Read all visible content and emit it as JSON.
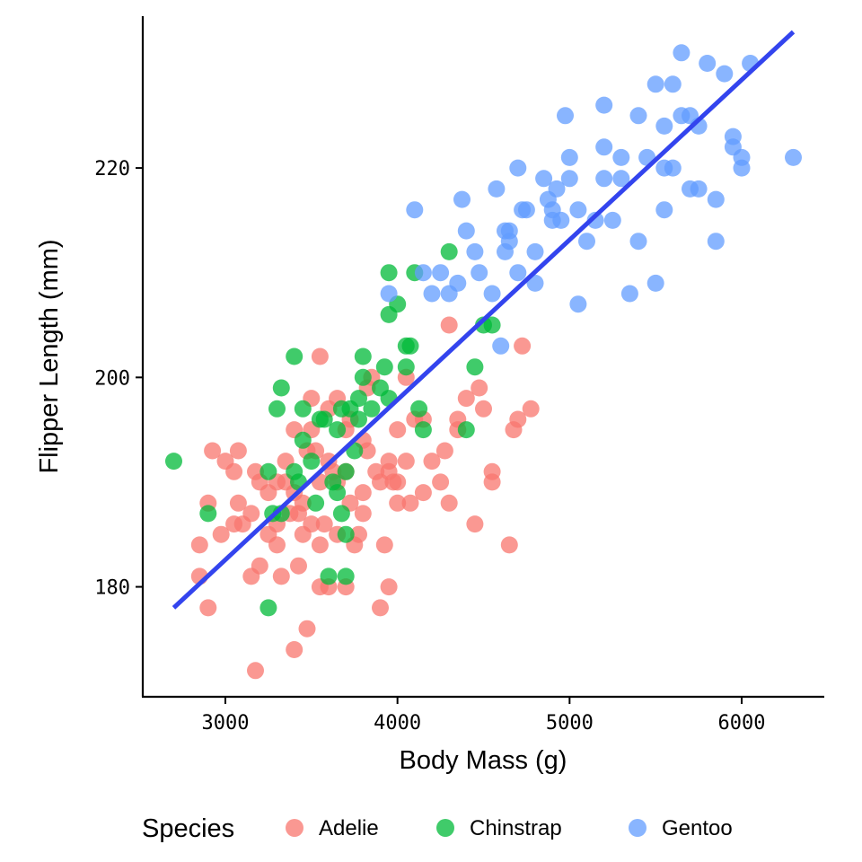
{
  "chart_data": {
    "type": "scatter",
    "title": "",
    "xlabel": "Body Mass (g)",
    "ylabel": "Flipper Length (mm)",
    "xlim": [
      2520,
      6480
    ],
    "ylim": [
      169.5,
      234.5
    ],
    "x_ticks": [
      3000,
      4000,
      5000,
      6000
    ],
    "x_tick_labels": [
      "3000",
      "4000",
      "5000",
      "6000"
    ],
    "y_ticks": [
      180,
      200,
      220
    ],
    "y_tick_labels": [
      "180",
      "200",
      "220"
    ],
    "grid": false,
    "legend": {
      "title": "Species",
      "placement": "bottom"
    },
    "series": [
      {
        "name": "Adelie",
        "color": "#F8766D",
        "points": [
          [
            2850,
            181
          ],
          [
            2900,
            178
          ],
          [
            2925,
            193
          ],
          [
            2975,
            185
          ],
          [
            3000,
            192
          ],
          [
            3050,
            186
          ],
          [
            3050,
            191
          ],
          [
            3075,
            188
          ],
          [
            3100,
            186
          ],
          [
            3150,
            187
          ],
          [
            3175,
            172
          ],
          [
            3200,
            182
          ],
          [
            3250,
            185
          ],
          [
            3300,
            190
          ],
          [
            3300,
            186
          ],
          [
            3325,
            181
          ],
          [
            3350,
            190
          ],
          [
            3400,
            189
          ],
          [
            3400,
            195
          ],
          [
            3425,
            187
          ],
          [
            3450,
            188
          ],
          [
            3475,
            176
          ],
          [
            3500,
            186
          ],
          [
            3525,
            193
          ],
          [
            3550,
            184
          ],
          [
            3550,
            190
          ],
          [
            3575,
            186
          ],
          [
            3600,
            180
          ],
          [
            3600,
            192
          ],
          [
            3625,
            191
          ],
          [
            3650,
            190
          ],
          [
            3700,
            180
          ],
          [
            3700,
            191
          ],
          [
            3725,
            188
          ],
          [
            3750,
            184
          ],
          [
            3775,
            185
          ],
          [
            3800,
            189
          ],
          [
            3800,
            187
          ],
          [
            3825,
            199
          ],
          [
            3850,
            200
          ],
          [
            3900,
            190
          ],
          [
            3900,
            178
          ],
          [
            3925,
            184
          ],
          [
            3950,
            192
          ],
          [
            3950,
            180
          ],
          [
            3975,
            190
          ],
          [
            4000,
            195
          ],
          [
            4050,
            192
          ],
          [
            4075,
            188
          ],
          [
            4100,
            196
          ],
          [
            4150,
            196
          ],
          [
            4200,
            192
          ],
          [
            4250,
            190
          ],
          [
            4275,
            193
          ],
          [
            4300,
            205
          ],
          [
            4350,
            196
          ],
          [
            4400,
            198
          ],
          [
            4450,
            186
          ],
          [
            4475,
            199
          ],
          [
            4500,
            197
          ],
          [
            4550,
            191
          ],
          [
            4650,
            184
          ],
          [
            4675,
            195
          ],
          [
            4700,
            196
          ],
          [
            4725,
            203
          ],
          [
            4775,
            197
          ],
          [
            2850,
            184
          ],
          [
            2900,
            188
          ],
          [
            3075,
            193
          ],
          [
            3250,
            189
          ],
          [
            3350,
            192
          ],
          [
            3400,
            174
          ],
          [
            3450,
            185
          ],
          [
            3500,
            198
          ],
          [
            3550,
            202
          ],
          [
            3650,
            185
          ],
          [
            3700,
            195
          ],
          [
            3800,
            194
          ],
          [
            3875,
            191
          ],
          [
            3950,
            191
          ],
          [
            4050,
            200
          ],
          [
            4000,
            190
          ],
          [
            4150,
            189
          ],
          [
            4300,
            188
          ],
          [
            4350,
            195
          ],
          [
            4550,
            190
          ],
          [
            3150,
            181
          ],
          [
            3300,
            184
          ],
          [
            3500,
            195
          ],
          [
            3200,
            190
          ],
          [
            3600,
            197
          ],
          [
            3725,
            196
          ],
          [
            4000,
            188
          ],
          [
            3175,
            191
          ],
          [
            3475,
            193
          ],
          [
            3650,
            198
          ],
          [
            3375,
            187
          ],
          [
            3550,
            180
          ],
          [
            3825,
            193
          ],
          [
            3425,
            182
          ]
        ]
      },
      {
        "name": "Chinstrap",
        "color": "#00BA38",
        "points": [
          [
            2700,
            192
          ],
          [
            2900,
            187
          ],
          [
            3250,
            178
          ],
          [
            3250,
            191
          ],
          [
            3275,
            187
          ],
          [
            3300,
            197
          ],
          [
            3325,
            199
          ],
          [
            3400,
            202
          ],
          [
            3400,
            191
          ],
          [
            3425,
            190
          ],
          [
            3450,
            197
          ],
          [
            3500,
            192
          ],
          [
            3525,
            188
          ],
          [
            3550,
            196
          ],
          [
            3600,
            181
          ],
          [
            3650,
            189
          ],
          [
            3650,
            195
          ],
          [
            3675,
            197
          ],
          [
            3700,
            181
          ],
          [
            3700,
            185
          ],
          [
            3700,
            191
          ],
          [
            3725,
            197
          ],
          [
            3750,
            193
          ],
          [
            3775,
            196
          ],
          [
            3800,
            202
          ],
          [
            3800,
            200
          ],
          [
            3850,
            197
          ],
          [
            3900,
            199
          ],
          [
            3925,
            201
          ],
          [
            3950,
            210
          ],
          [
            3950,
            206
          ],
          [
            4000,
            207
          ],
          [
            4050,
            203
          ],
          [
            4050,
            201
          ],
          [
            4100,
            210
          ],
          [
            4125,
            197
          ],
          [
            4150,
            195
          ],
          [
            4300,
            212
          ],
          [
            4400,
            195
          ],
          [
            4450,
            201
          ],
          [
            4500,
            205
          ],
          [
            4550,
            205
          ],
          [
            3325,
            187
          ],
          [
            3575,
            196
          ],
          [
            3675,
            187
          ],
          [
            3775,
            198
          ],
          [
            3950,
            198
          ],
          [
            4075,
            203
          ],
          [
            3450,
            194
          ],
          [
            3625,
            190
          ]
        ]
      },
      {
        "name": "Gentoo",
        "color": "#619CFF",
        "points": [
          [
            3950,
            208
          ],
          [
            4100,
            216
          ],
          [
            4150,
            210
          ],
          [
            4200,
            208
          ],
          [
            4250,
            210
          ],
          [
            4300,
            208
          ],
          [
            4350,
            209
          ],
          [
            4375,
            217
          ],
          [
            4400,
            214
          ],
          [
            4450,
            212
          ],
          [
            4475,
            210
          ],
          [
            4550,
            208
          ],
          [
            4575,
            218
          ],
          [
            4600,
            203
          ],
          [
            4625,
            212
          ],
          [
            4650,
            214
          ],
          [
            4700,
            210
          ],
          [
            4700,
            220
          ],
          [
            4725,
            216
          ],
          [
            4750,
            216
          ],
          [
            4800,
            209
          ],
          [
            4850,
            219
          ],
          [
            4875,
            217
          ],
          [
            4900,
            216
          ],
          [
            4925,
            218
          ],
          [
            4950,
            215
          ],
          [
            4975,
            225
          ],
          [
            5000,
            221
          ],
          [
            5050,
            207
          ],
          [
            5050,
            216
          ],
          [
            5100,
            213
          ],
          [
            5150,
            215
          ],
          [
            5200,
            226
          ],
          [
            5200,
            219
          ],
          [
            5250,
            215
          ],
          [
            5300,
            221
          ],
          [
            5350,
            208
          ],
          [
            5400,
            213
          ],
          [
            5400,
            225
          ],
          [
            5450,
            221
          ],
          [
            5500,
            209
          ],
          [
            5500,
            228
          ],
          [
            5550,
            224
          ],
          [
            5550,
            216
          ],
          [
            5600,
            220
          ],
          [
            5650,
            231
          ],
          [
            5700,
            218
          ],
          [
            5700,
            225
          ],
          [
            5750,
            224
          ],
          [
            5800,
            230
          ],
          [
            5850,
            213
          ],
          [
            5900,
            229
          ],
          [
            5950,
            223
          ],
          [
            6000,
            221
          ],
          [
            6050,
            230
          ],
          [
            6300,
            221
          ],
          [
            4650,
            213
          ],
          [
            4900,
            215
          ],
          [
            5000,
            219
          ],
          [
            5200,
            222
          ],
          [
            5300,
            219
          ],
          [
            5550,
            220
          ],
          [
            5650,
            225
          ],
          [
            5750,
            218
          ],
          [
            5850,
            217
          ],
          [
            5950,
            222
          ],
          [
            6000,
            220
          ],
          [
            5600,
            228
          ],
          [
            4800,
            212
          ],
          [
            4625,
            214
          ]
        ]
      }
    ],
    "trend_line": {
      "label": "linear fit",
      "color": "#3344EE",
      "x": [
        2700,
        6300
      ],
      "y": [
        178,
        233
      ]
    }
  }
}
